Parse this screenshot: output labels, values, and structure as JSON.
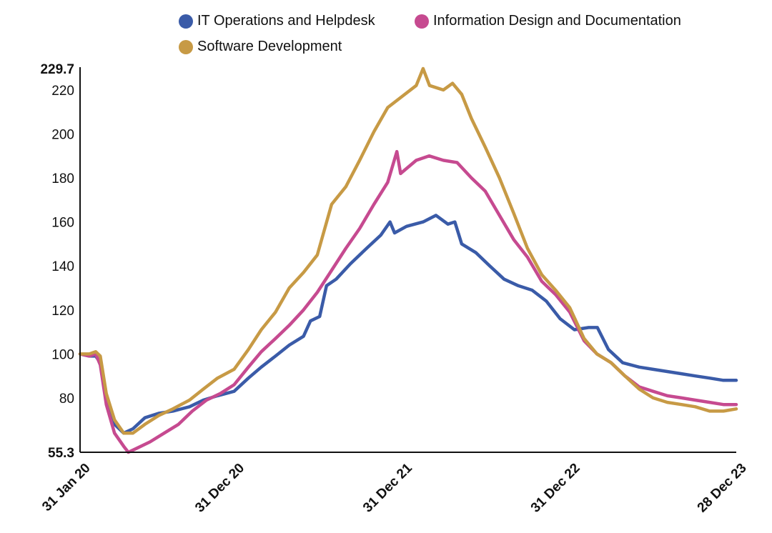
{
  "chart_data": {
    "type": "line",
    "title": "",
    "xlabel": "",
    "ylabel": "",
    "ylim": [
      55.3,
      229.7
    ],
    "y_ticks": [
      80,
      100,
      120,
      140,
      160,
      180,
      200,
      220
    ],
    "y_min_label": "55.3",
    "y_max_label": "229.7",
    "x_range": [
      "2020-01-31",
      "2023-12-28"
    ],
    "x_ticks": [
      {
        "date": "2020-01-31",
        "label": "31 Jan 20"
      },
      {
        "date": "2020-12-31",
        "label": "31 Dec 20"
      },
      {
        "date": "2021-12-31",
        "label": "31 Dec 21"
      },
      {
        "date": "2022-12-31",
        "label": "31 Dec 22"
      },
      {
        "date": "2023-12-28",
        "label": "28 Dec 23"
      }
    ],
    "grid": false,
    "legend_position": "top",
    "series": [
      {
        "name": "IT Operations and Helpdesk",
        "color": "#3a5ba8",
        "points": [
          [
            "2020-01-31",
            100
          ],
          [
            "2020-02-20",
            99
          ],
          [
            "2020-03-05",
            99
          ],
          [
            "2020-03-15",
            96
          ],
          [
            "2020-03-28",
            80
          ],
          [
            "2020-04-15",
            68
          ],
          [
            "2020-05-05",
            64
          ],
          [
            "2020-05-25",
            66
          ],
          [
            "2020-06-20",
            71
          ],
          [
            "2020-07-20",
            73
          ],
          [
            "2020-08-20",
            74
          ],
          [
            "2020-09-25",
            76
          ],
          [
            "2020-10-25",
            79
          ],
          [
            "2020-11-25",
            81
          ],
          [
            "2020-12-31",
            83
          ],
          [
            "2021-01-31",
            89
          ],
          [
            "2021-02-28",
            94
          ],
          [
            "2021-03-31",
            99
          ],
          [
            "2021-04-30",
            104
          ],
          [
            "2021-05-31",
            108
          ],
          [
            "2021-06-15",
            115
          ],
          [
            "2021-07-05",
            117
          ],
          [
            "2021-07-20",
            131
          ],
          [
            "2021-08-10",
            134
          ],
          [
            "2021-09-10",
            141
          ],
          [
            "2021-10-15",
            148
          ],
          [
            "2021-11-15",
            154
          ],
          [
            "2021-12-05",
            160
          ],
          [
            "2021-12-15",
            155
          ],
          [
            "2022-01-10",
            158
          ],
          [
            "2022-02-15",
            160
          ],
          [
            "2022-03-15",
            163
          ],
          [
            "2022-04-10",
            159
          ],
          [
            "2022-04-25",
            160
          ],
          [
            "2022-05-10",
            150
          ],
          [
            "2022-06-10",
            146
          ],
          [
            "2022-07-10",
            140
          ],
          [
            "2022-08-10",
            134
          ],
          [
            "2022-09-10",
            131
          ],
          [
            "2022-10-10",
            129
          ],
          [
            "2022-11-10",
            124
          ],
          [
            "2022-12-10",
            116
          ],
          [
            "2023-01-10",
            111
          ],
          [
            "2023-02-10",
            112
          ],
          [
            "2023-03-01",
            112
          ],
          [
            "2023-03-25",
            102
          ],
          [
            "2023-04-25",
            96
          ],
          [
            "2023-05-31",
            94
          ],
          [
            "2023-06-30",
            93
          ],
          [
            "2023-07-31",
            92
          ],
          [
            "2023-08-31",
            91
          ],
          [
            "2023-09-30",
            90
          ],
          [
            "2023-10-31",
            89
          ],
          [
            "2023-11-30",
            88
          ],
          [
            "2023-12-28",
            88
          ]
        ]
      },
      {
        "name": "Information Design and Documentation",
        "color": "#c64a90",
        "points": [
          [
            "2020-01-31",
            100
          ],
          [
            "2020-02-20",
            99
          ],
          [
            "2020-03-05",
            100
          ],
          [
            "2020-03-15",
            95
          ],
          [
            "2020-03-28",
            77
          ],
          [
            "2020-04-15",
            64
          ],
          [
            "2020-05-05",
            58
          ],
          [
            "2020-05-15",
            55.3
          ],
          [
            "2020-06-01",
            57
          ],
          [
            "2020-07-01",
            60
          ],
          [
            "2020-08-01",
            64
          ],
          [
            "2020-09-01",
            68
          ],
          [
            "2020-10-01",
            74
          ],
          [
            "2020-11-01",
            79
          ],
          [
            "2020-12-01",
            82
          ],
          [
            "2020-12-31",
            86
          ],
          [
            "2021-01-31",
            94
          ],
          [
            "2021-02-28",
            101
          ],
          [
            "2021-03-31",
            107
          ],
          [
            "2021-04-30",
            113
          ],
          [
            "2021-05-31",
            120
          ],
          [
            "2021-06-30",
            128
          ],
          [
            "2021-07-31",
            138
          ],
          [
            "2021-08-31",
            148
          ],
          [
            "2021-09-30",
            157
          ],
          [
            "2021-10-31",
            168
          ],
          [
            "2021-11-30",
            178
          ],
          [
            "2021-12-10",
            185
          ],
          [
            "2021-12-20",
            192
          ],
          [
            "2021-12-28",
            182
          ],
          [
            "2022-01-31",
            188
          ],
          [
            "2022-02-28",
            190
          ],
          [
            "2022-03-31",
            188
          ],
          [
            "2022-04-30",
            187
          ],
          [
            "2022-05-31",
            180
          ],
          [
            "2022-06-30",
            174
          ],
          [
            "2022-07-31",
            163
          ],
          [
            "2022-08-31",
            152
          ],
          [
            "2022-09-30",
            144
          ],
          [
            "2022-10-31",
            133
          ],
          [
            "2022-11-30",
            127
          ],
          [
            "2022-12-31",
            119
          ],
          [
            "2023-01-31",
            106
          ],
          [
            "2023-02-28",
            100
          ],
          [
            "2023-03-31",
            96
          ],
          [
            "2023-04-30",
            90
          ],
          [
            "2023-05-31",
            85
          ],
          [
            "2023-06-30",
            83
          ],
          [
            "2023-07-31",
            81
          ],
          [
            "2023-08-31",
            80
          ],
          [
            "2023-09-30",
            79
          ],
          [
            "2023-10-31",
            78
          ],
          [
            "2023-11-30",
            77
          ],
          [
            "2023-12-28",
            77
          ]
        ]
      },
      {
        "name": "Software Development",
        "color": "#c79a45",
        "points": [
          [
            "2020-01-31",
            100
          ],
          [
            "2020-02-20",
            100
          ],
          [
            "2020-03-05",
            101
          ],
          [
            "2020-03-15",
            99
          ],
          [
            "2020-03-28",
            82
          ],
          [
            "2020-04-15",
            70
          ],
          [
            "2020-05-05",
            64
          ],
          [
            "2020-05-25",
            64
          ],
          [
            "2020-06-20",
            68
          ],
          [
            "2020-07-20",
            72
          ],
          [
            "2020-08-20",
            75
          ],
          [
            "2020-09-25",
            79
          ],
          [
            "2020-10-25",
            84
          ],
          [
            "2020-11-25",
            89
          ],
          [
            "2020-12-31",
            93
          ],
          [
            "2021-01-31",
            102
          ],
          [
            "2021-02-28",
            111
          ],
          [
            "2021-03-31",
            119
          ],
          [
            "2021-04-30",
            130
          ],
          [
            "2021-05-31",
            137
          ],
          [
            "2021-06-30",
            145
          ],
          [
            "2021-07-31",
            168
          ],
          [
            "2021-08-31",
            176
          ],
          [
            "2021-09-30",
            188
          ],
          [
            "2021-10-31",
            201
          ],
          [
            "2021-11-30",
            212
          ],
          [
            "2021-12-31",
            217
          ],
          [
            "2022-01-31",
            222
          ],
          [
            "2022-02-15",
            229.7
          ],
          [
            "2022-03-01",
            222
          ],
          [
            "2022-03-31",
            220
          ],
          [
            "2022-04-20",
            223
          ],
          [
            "2022-05-10",
            218
          ],
          [
            "2022-05-31",
            207
          ],
          [
            "2022-06-30",
            194
          ],
          [
            "2022-07-31",
            180
          ],
          [
            "2022-08-31",
            164
          ],
          [
            "2022-09-30",
            148
          ],
          [
            "2022-10-31",
            136
          ],
          [
            "2022-11-30",
            129
          ],
          [
            "2022-12-31",
            121
          ],
          [
            "2023-01-31",
            107
          ],
          [
            "2023-02-28",
            100
          ],
          [
            "2023-03-31",
            96
          ],
          [
            "2023-04-30",
            90
          ],
          [
            "2023-05-31",
            84
          ],
          [
            "2023-06-30",
            80
          ],
          [
            "2023-07-31",
            78
          ],
          [
            "2023-08-31",
            77
          ],
          [
            "2023-09-30",
            76
          ],
          [
            "2023-10-31",
            74
          ],
          [
            "2023-11-30",
            74
          ],
          [
            "2023-12-28",
            75
          ]
        ]
      }
    ]
  }
}
